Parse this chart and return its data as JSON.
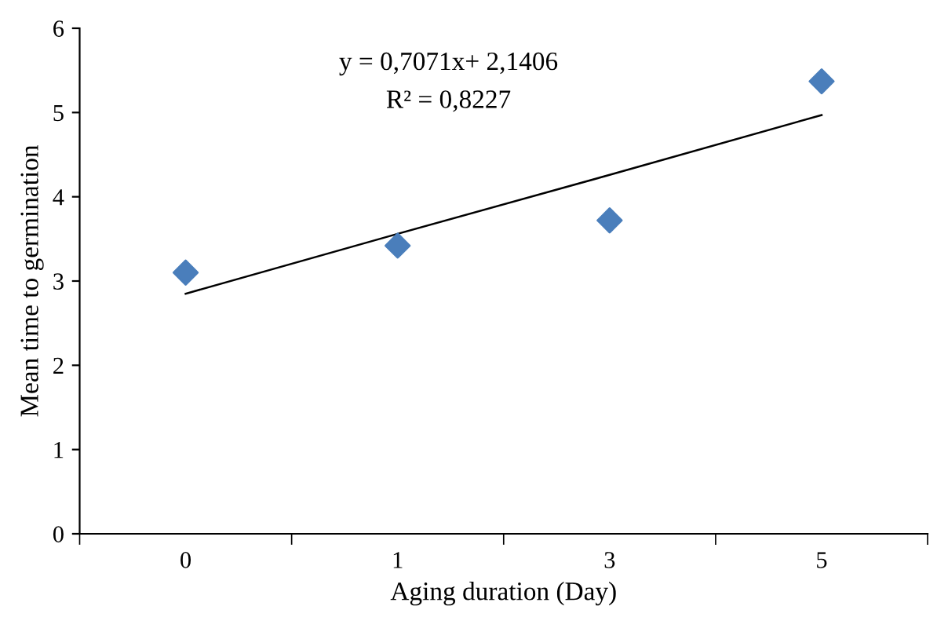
{
  "chart_data": {
    "type": "scatter",
    "xlabel": "Aging duration (Day)",
    "ylabel": "Mean time to germination",
    "categories": [
      "0",
      "1",
      "3",
      "5"
    ],
    "series": [
      {
        "color": "#4a7ebb",
        "marker": "diamond",
        "values": [
          3.1,
          3.42,
          3.72,
          5.37
        ]
      },
      {
        "type": "line",
        "color": "#000000",
        "marker": "none",
        "line_style": "solid",
        "values": [
          2.85,
          3.56,
          4.26,
          4.97
        ]
      }
    ],
    "ylim": [
      0,
      6
    ],
    "yticks": [
      0,
      1,
      2,
      3,
      4,
      5,
      6
    ],
    "grid": false,
    "legend": false,
    "annotations": [
      "y = 0,7071x+ 2,1406",
      "R² = 0,8227"
    ]
  }
}
